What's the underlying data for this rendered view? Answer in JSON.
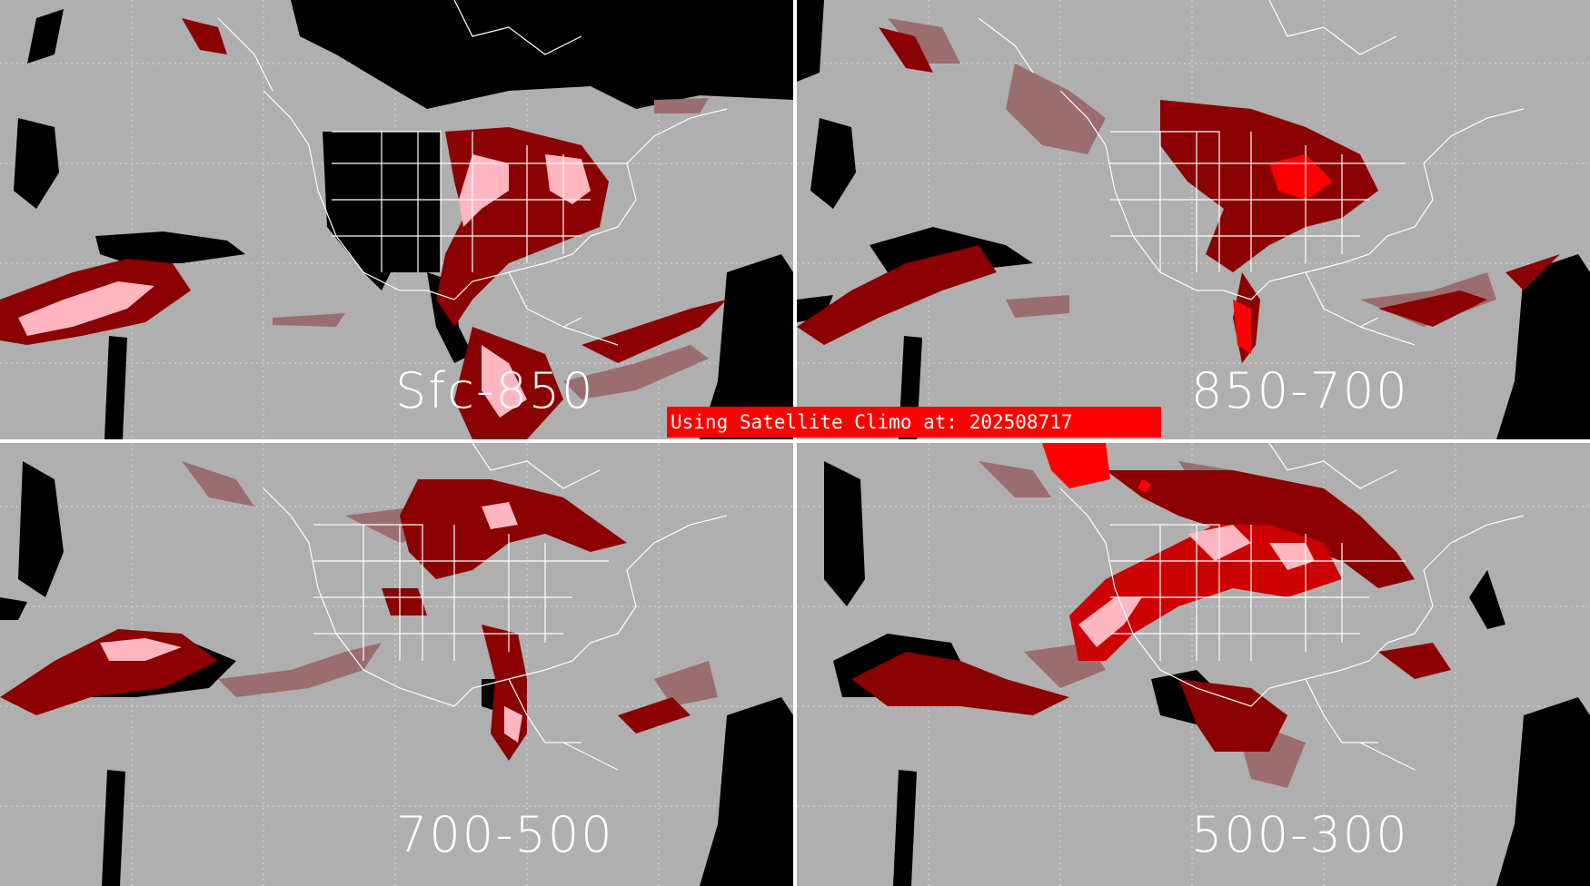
{
  "panels": [
    {
      "id": "sfc-850",
      "label": "Sfc-850"
    },
    {
      "id": "850-700",
      "label": "850-700"
    },
    {
      "id": "700-500",
      "label": "700-500"
    },
    {
      "id": "500-300",
      "label": "500-300"
    }
  ],
  "banner": {
    "text": "Using Satellite Climo at: 202508717"
  },
  "colors": {
    "background": "#afafaf",
    "no_data": "#000000",
    "low": "#9a6e6e",
    "moderate": "#8b0000",
    "high": "#cc0000",
    "very_high": "#ffb6c1",
    "extreme": "#ff0000",
    "coastline": "#ffffff",
    "banner": "#ff0000"
  }
}
